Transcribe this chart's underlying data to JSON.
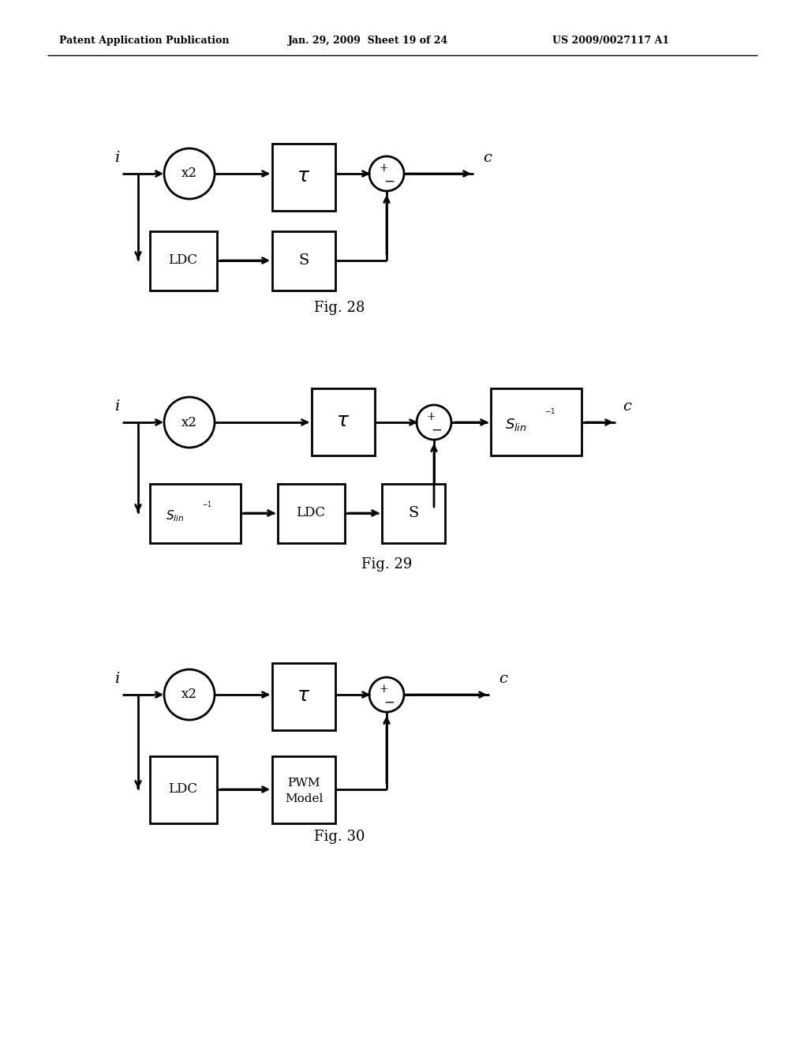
{
  "header_left": "Patent Application Publication",
  "header_mid": "Jan. 29, 2009  Sheet 19 of 24",
  "header_right": "US 2009/0027117 A1",
  "fig28_label": "Fig. 28",
  "fig29_label": "Fig. 29",
  "fig30_label": "Fig. 30",
  "bg_color": "#ffffff",
  "line_color": "#000000",
  "lw": 2.0
}
